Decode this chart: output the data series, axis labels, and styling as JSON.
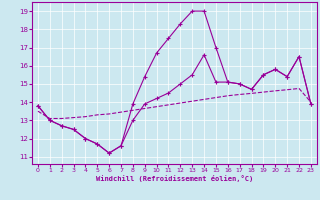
{
  "xlabel": "Windchill (Refroidissement éolien,°C)",
  "background_color": "#cce8f0",
  "line_color": "#990099",
  "x_ticks": [
    0,
    1,
    2,
    3,
    4,
    5,
    6,
    7,
    8,
    9,
    10,
    11,
    12,
    13,
    14,
    15,
    16,
    17,
    18,
    19,
    20,
    21,
    22,
    23
  ],
  "y_ticks": [
    11,
    12,
    13,
    14,
    15,
    16,
    17,
    18,
    19
  ],
  "ylim": [
    10.6,
    19.5
  ],
  "xlim": [
    -0.5,
    23.5
  ],
  "series1_x": [
    0,
    1,
    2,
    3,
    4,
    5,
    6,
    7,
    8,
    9,
    10,
    11,
    12,
    13,
    14,
    15,
    16,
    17,
    18,
    19,
    20,
    21,
    22,
    23
  ],
  "series1_y": [
    13.8,
    13.0,
    12.7,
    12.5,
    12.0,
    11.7,
    11.2,
    11.6,
    13.0,
    13.9,
    14.2,
    14.5,
    15.0,
    15.5,
    16.6,
    15.1,
    15.1,
    15.0,
    14.7,
    15.5,
    15.8,
    15.4,
    16.5,
    13.9
  ],
  "series2_x": [
    0,
    1,
    2,
    3,
    4,
    5,
    6,
    7,
    8,
    9,
    10,
    11,
    12,
    13,
    14,
    15,
    16,
    17,
    18,
    19,
    20,
    21,
    22,
    23
  ],
  "series2_y": [
    13.8,
    13.0,
    12.7,
    12.5,
    12.0,
    11.7,
    11.2,
    11.6,
    13.9,
    15.4,
    16.7,
    17.5,
    18.3,
    19.0,
    19.0,
    17.0,
    15.1,
    15.0,
    14.7,
    15.5,
    15.8,
    15.4,
    16.5,
    13.9
  ],
  "series3_x": [
    0,
    1,
    2,
    3,
    4,
    5,
    6,
    7,
    8,
    9,
    10,
    11,
    12,
    13,
    14,
    15,
    16,
    17,
    18,
    19,
    20,
    21,
    22,
    23
  ],
  "series3_y": [
    13.5,
    13.1,
    13.1,
    13.15,
    13.2,
    13.3,
    13.35,
    13.45,
    13.55,
    13.65,
    13.75,
    13.85,
    13.95,
    14.05,
    14.15,
    14.25,
    14.35,
    14.42,
    14.48,
    14.55,
    14.62,
    14.68,
    14.75,
    14.0
  ]
}
